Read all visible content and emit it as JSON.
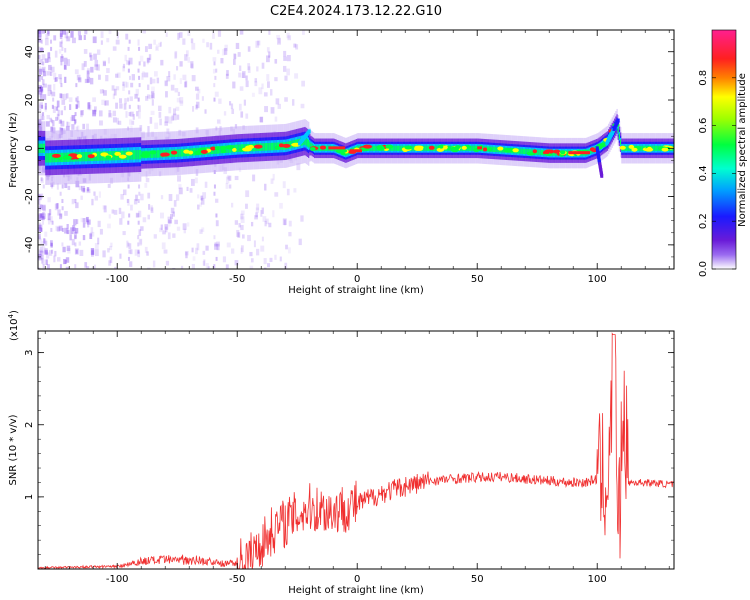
{
  "page_title": "C2E4.2024.173.12.22.G10",
  "colors": {
    "snr_line": "#f03030",
    "colormap": [
      "#ffffff",
      "#6a1bd8",
      "#1a1aff",
      "#00c8ff",
      "#00ff40",
      "#ffff00",
      "#ff2020",
      "#ff1f8f"
    ]
  },
  "chart_data": [
    {
      "id": "spectrogram",
      "type": "heatmap",
      "title": "C2E4.2024.173.12.22.G10",
      "xlabel": "Height of straight line (km)",
      "ylabel": "Frequency (Hz)",
      "xlim": [
        -133,
        132
      ],
      "ylim": [
        -50,
        49
      ],
      "xticks": [
        -100,
        -50,
        0,
        50,
        100
      ],
      "yticks": [
        -40,
        -20,
        0,
        20,
        40
      ],
      "colorbar": {
        "label": "Normalized spectral amplitude",
        "range": [
          0,
          1
        ],
        "ticks": [
          "0.0",
          "0.2",
          "0.4",
          "0.6",
          "0.8"
        ]
      },
      "ridge": [
        {
          "x": -130,
          "y": -4
        },
        {
          "x": -100,
          "y": -3
        },
        {
          "x": -75,
          "y": -2
        },
        {
          "x": -50,
          "y": 0
        },
        {
          "x": -30,
          "y": 1
        },
        {
          "x": -22,
          "y": 3
        },
        {
          "x": -18,
          "y": 0
        },
        {
          "x": -10,
          "y": 0
        },
        {
          "x": -5,
          "y": -2
        },
        {
          "x": 0,
          "y": 0
        },
        {
          "x": 50,
          "y": 0
        },
        {
          "x": 80,
          "y": -2
        },
        {
          "x": 95,
          "y": -2
        },
        {
          "x": 100,
          "y": 0
        },
        {
          "x": 104,
          "y": 3
        },
        {
          "x": 108,
          "y": 10
        },
        {
          "x": 110,
          "y": 0
        },
        {
          "x": 132,
          "y": 0
        }
      ],
      "branch_down": [
        {
          "x": 100,
          "y": 0
        },
        {
          "x": 102,
          "y": -12
        }
      ]
    },
    {
      "id": "snr",
      "type": "line",
      "xlabel": "Height of straight line (km)",
      "ylabel": "SNR (10 * v/v)",
      "y_multiplier": "(x10",
      "y_multiplier_exp": "4",
      "y_multiplier_close": ")",
      "xlim": [
        -133,
        132
      ],
      "ylim": [
        0,
        3.3
      ],
      "xticks": [
        -100,
        -50,
        0,
        50,
        100
      ],
      "yticks": [
        1,
        2,
        3
      ],
      "series": [
        {
          "values_envelope": [
            {
              "x": -133,
              "y": 0.02
            },
            {
              "x": -100,
              "y": 0.04
            },
            {
              "x": -90,
              "y": 0.12
            },
            {
              "x": -70,
              "y": 0.15
            },
            {
              "x": -55,
              "y": 0.08
            },
            {
              "x": -50,
              "y": 0.1
            },
            {
              "x": -45,
              "y": 0.15
            },
            {
              "x": -40,
              "y": 0.35
            },
            {
              "x": -35,
              "y": 0.55
            },
            {
              "x": -30,
              "y": 0.65
            },
            {
              "x": -25,
              "y": 0.75
            },
            {
              "x": -20,
              "y": 0.85
            },
            {
              "x": -10,
              "y": 0.8
            },
            {
              "x": 0,
              "y": 0.9
            },
            {
              "x": 10,
              "y": 1.05
            },
            {
              "x": 20,
              "y": 1.15
            },
            {
              "x": 30,
              "y": 1.22
            },
            {
              "x": 40,
              "y": 1.25
            },
            {
              "x": 50,
              "y": 1.27
            },
            {
              "x": 60,
              "y": 1.28
            },
            {
              "x": 70,
              "y": 1.25
            },
            {
              "x": 80,
              "y": 1.22
            },
            {
              "x": 90,
              "y": 1.2
            },
            {
              "x": 95,
              "y": 1.2
            },
            {
              "x": 100,
              "y": 1.25
            },
            {
              "x": 105,
              "y": 1.3
            },
            {
              "x": 107,
              "y": 3.25
            },
            {
              "x": 109,
              "y": 0.5
            },
            {
              "x": 111,
              "y": 2.4
            },
            {
              "x": 113,
              "y": 1.2
            },
            {
              "x": 120,
              "y": 1.2
            },
            {
              "x": 132,
              "y": 1.17
            }
          ]
        }
      ]
    }
  ]
}
